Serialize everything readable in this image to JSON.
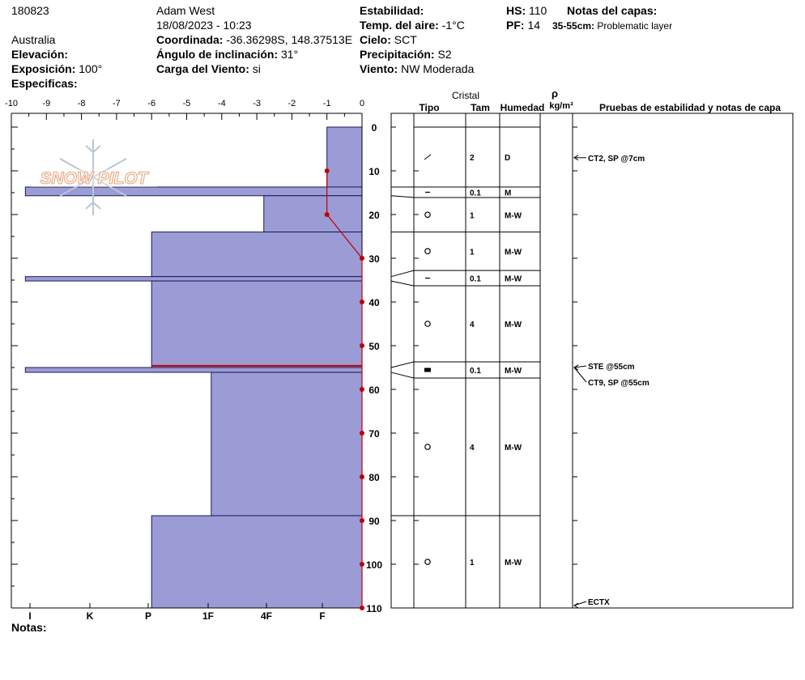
{
  "header": {
    "id": "180823",
    "location": "Australia",
    "elevation_label": "Elevación:",
    "exposure_label": "Exposición:",
    "exposure_value": "100°",
    "specific_label": "Especificas:",
    "observer": "Adam West",
    "datetime": "18/08/2023 - 10:23",
    "coord_label": "Coordinada:",
    "coord_value": "-36.36298S, 148.37513E",
    "slope_label": "Ángulo de inclinación:",
    "slope_value": "31°",
    "wind_load_label": "Carga del Viento:",
    "wind_load_value": "si",
    "stability_label": "Estabilidad:",
    "air_temp_label": "Temp. del aire:",
    "air_temp_value": "-1°C",
    "sky_label": "Cielo:",
    "sky_value": "SCT",
    "precip_label": "Precipitación:",
    "precip_value": "S2",
    "wind_label": "Viento:",
    "wind_value": "NW Moderada",
    "hs_label": "HS:",
    "hs_value": "110",
    "pf_label": "PF:",
    "pf_value": "14",
    "layer_notes_label": "Notas del capas:",
    "layer_note_range": "35-55cm:",
    "layer_note_text": "Problematic layer"
  },
  "footer": {
    "notes_label": "Notas:"
  },
  "logo": {
    "text": "SNOW PILOT"
  },
  "table_headers": {
    "crystal": "Cristal",
    "type": "Tipo",
    "size": "Tam",
    "moisture": "Humedad",
    "rho": "ρ",
    "density_unit": "kg/m³",
    "tests": "Pruebas de estabilidad y notas de capa"
  },
  "colors": {
    "layer_fill": "#9b9bd6",
    "temp_line": "#c00000",
    "weak_layer": "#c00000"
  },
  "chart_data": {
    "type": "snow-profile",
    "temperature_axis": {
      "ticks": [
        "-10",
        "-9",
        "-8",
        "-7",
        "-6",
        "-5",
        "-4",
        "-3",
        "-2",
        "-1",
        "0"
      ],
      "range": [
        -10,
        0
      ]
    },
    "hardness_axis": {
      "ticks": [
        "I",
        "K",
        "P",
        "1F",
        "4F",
        "F"
      ]
    },
    "depth_axis": {
      "ticks": [
        "0",
        "10",
        "20",
        "30",
        "40",
        "50",
        "60",
        "70",
        "80",
        "90",
        "100",
        "110"
      ],
      "range": [
        0,
        110
      ]
    },
    "temperature_profile": [
      {
        "depth": 10,
        "temp": -1
      },
      {
        "depth": 20,
        "temp": -1
      },
      {
        "depth": 30,
        "temp": 0
      },
      {
        "depth": 40,
        "temp": 0
      },
      {
        "depth": 50,
        "temp": 0
      },
      {
        "depth": 60,
        "temp": 0
      },
      {
        "depth": 70,
        "temp": 0
      },
      {
        "depth": 80,
        "temp": 0
      },
      {
        "depth": 90,
        "temp": 0
      },
      {
        "depth": 100,
        "temp": 0
      },
      {
        "depth": 110,
        "temp": 0
      }
    ],
    "hardness_profile": [
      {
        "top": 0,
        "bottom": 13.7,
        "hardness": 1.0
      },
      {
        "top": 13.7,
        "bottom": 15.7,
        "hardness": 9.6
      },
      {
        "top": 15.7,
        "bottom": 24.0,
        "hardness": 2.8
      },
      {
        "top": 24.0,
        "bottom": 34.2,
        "hardness": 6.0
      },
      {
        "top": 34.2,
        "bottom": 35.2,
        "hardness": 9.6
      },
      {
        "top": 35.2,
        "bottom": 55.0,
        "hardness": 6.0
      },
      {
        "top": 55.0,
        "bottom": 56.1,
        "hardness": 9.6
      },
      {
        "top": 56.1,
        "bottom": 88.9,
        "hardness": 4.3
      },
      {
        "top": 88.9,
        "bottom": 110,
        "hardness": 6.0
      }
    ],
    "weak_layer_depth": 54.6,
    "layers": [
      {
        "top": 0,
        "bottom": 13.7,
        "size": "2",
        "moisture": "D",
        "grain": "decomposing"
      },
      {
        "top": 13.7,
        "bottom": 16.1,
        "size": "0.1",
        "moisture": "M",
        "grain": "dash"
      },
      {
        "top": 16.1,
        "bottom": 24.0,
        "size": "1",
        "moisture": "M-W",
        "grain": "circle"
      },
      {
        "top": 24.0,
        "bottom": 32.8,
        "size": "1",
        "moisture": "M-W",
        "grain": "circle"
      },
      {
        "top": 32.8,
        "bottom": 36.3,
        "size": "0.1",
        "moisture": "M-W",
        "grain": "dash"
      },
      {
        "top": 36.3,
        "bottom": 53.7,
        "size": "4",
        "moisture": "M-W",
        "grain": "circle"
      },
      {
        "top": 53.7,
        "bottom": 57.4,
        "size": "0.1",
        "moisture": "M-W",
        "grain": "filled-square"
      },
      {
        "top": 57.4,
        "bottom": 88.9,
        "size": "4",
        "moisture": "M-W",
        "grain": "circle"
      },
      {
        "top": 88.9,
        "bottom": 110,
        "size": "1",
        "moisture": "M-W",
        "grain": "circle"
      }
    ],
    "tests": [
      {
        "depth": 7,
        "label": "CT2, SP @7cm"
      },
      {
        "depth": 55,
        "label": "STE @55cm"
      },
      {
        "depth": 55,
        "label": "CT9, SP @55cm"
      },
      {
        "depth": 110,
        "label": "ECTX"
      }
    ]
  }
}
